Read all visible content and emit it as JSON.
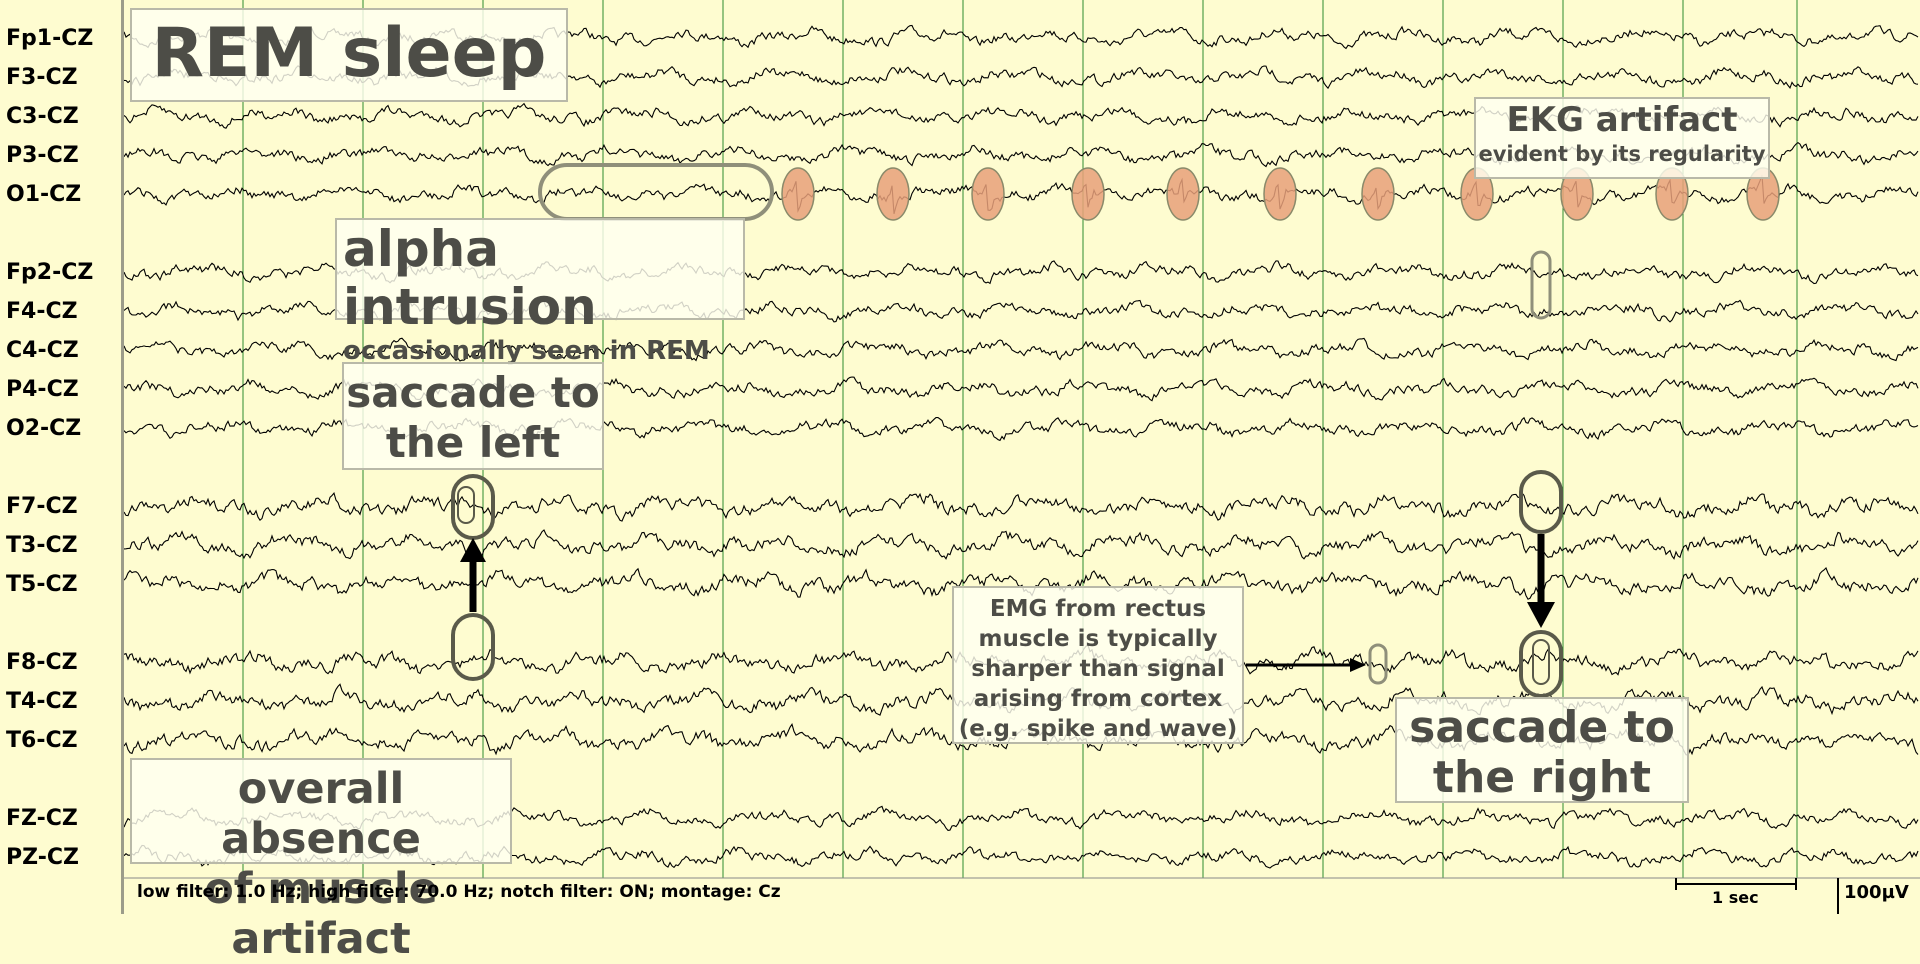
{
  "title": "REM sleep",
  "channels": {
    "left": [
      "Fp1-CZ",
      "F3-CZ",
      "C3-CZ",
      "P3-CZ",
      "O1-CZ"
    ],
    "right": [
      "Fp2-CZ",
      "F4-CZ",
      "C4-CZ",
      "P4-CZ",
      "O2-CZ"
    ],
    "temporal_left": [
      "F7-CZ",
      "T3-CZ",
      "T5-CZ"
    ],
    "temporal_right": [
      "F8-CZ",
      "T4-CZ",
      "T6-CZ"
    ],
    "midline": [
      "FZ-CZ",
      "PZ-CZ"
    ]
  },
  "annotations": {
    "alpha": {
      "line1": "alpha intrusion",
      "line2": "occasionally seen in REM"
    },
    "ekg": {
      "line1": "EKG artifact",
      "line2": "evident by its regularity"
    },
    "saccade_left": {
      "line1": "saccade to",
      "line2": "the left"
    },
    "saccade_right": {
      "line1": "saccade to",
      "line2": "the right"
    },
    "emg": {
      "lines": [
        "EMG from rectus",
        "muscle is typically",
        "sharper than signal",
        "arising from cortex",
        "(e.g. spike and wave)"
      ]
    },
    "muscle": {
      "line1": "overall absence",
      "line2": "of muscle artifact"
    }
  },
  "footer": {
    "filters": "low filter: 1.0 Hz; high filter: 70.0 Hz; notch filter: ON; montage: Cz"
  },
  "scale": {
    "time": "1 sec",
    "amplitude": "100µV"
  },
  "colors": {
    "background": "#fefcd0",
    "gridline": "#2e8b2e",
    "trace": "#000000",
    "ekg_marker": "#e8a07a",
    "oval": "#5a5a4a"
  }
}
